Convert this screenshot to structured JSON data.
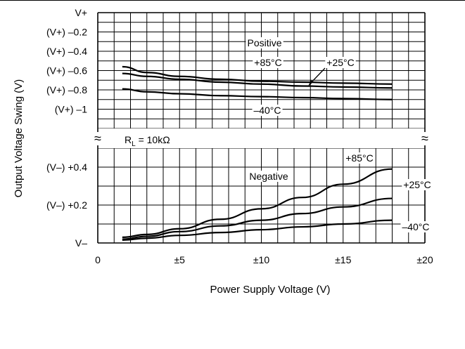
{
  "chart_data": {
    "type": "line",
    "xlabel": "Power Supply Voltage (V)",
    "ylabel": "Output Voltage Swing (V)",
    "x_ticks": [
      {
        "value": 0,
        "label": "0"
      },
      {
        "value": 5,
        "label": "±5"
      },
      {
        "value": 10,
        "label": "±10"
      },
      {
        "value": 15,
        "label": "±15"
      },
      {
        "value": 20,
        "label": "±20"
      }
    ],
    "xlim": [
      0,
      20
    ],
    "grid": true,
    "axis_break_symbol": "≈",
    "condition_label": {
      "main": "R",
      "sub": "L",
      "rest": " = 10kΩ"
    },
    "upper_panel": {
      "label": "Positive",
      "y_units": "volts relative to V+",
      "ylim": [
        -1.2,
        0
      ],
      "y_ticks": [
        {
          "value": 0,
          "label": "V+"
        },
        {
          "value": -0.2,
          "label": "(V+) –0.2"
        },
        {
          "value": -0.4,
          "label": "(V+) –0.4"
        },
        {
          "value": -0.6,
          "label": "(V+) –0.6"
        },
        {
          "value": -0.8,
          "label": "(V+) –0.8"
        },
        {
          "value": -1,
          "label": "(V+) –1"
        }
      ],
      "series": [
        {
          "name": "+85°C",
          "x": [
            1.5,
            3,
            5,
            7.5,
            10,
            12.5,
            15,
            18
          ],
          "y": [
            -0.63,
            -0.66,
            -0.69,
            -0.72,
            -0.74,
            -0.76,
            -0.77,
            -0.78
          ]
        },
        {
          "name": "+25°C",
          "x": [
            1.5,
            3,
            5,
            7.5,
            10,
            12.5,
            15,
            18
          ],
          "y": [
            -0.56,
            -0.62,
            -0.66,
            -0.69,
            -0.71,
            -0.72,
            -0.73,
            -0.74
          ]
        },
        {
          "name": "–40°C",
          "x": [
            1.5,
            3,
            5,
            7.5,
            10,
            12.5,
            15,
            18
          ],
          "y": [
            -0.79,
            -0.82,
            -0.84,
            -0.86,
            -0.87,
            -0.88,
            -0.89,
            -0.9
          ]
        }
      ]
    },
    "lower_panel": {
      "label": "Negative",
      "y_units": "volts relative to V–",
      "ylim": [
        0,
        0.5
      ],
      "y_ticks": [
        {
          "value": 0,
          "label": "V–"
        },
        {
          "value": 0.2,
          "label": "(V–) +0.2"
        },
        {
          "value": 0.4,
          "label": "(V–) +0.4"
        }
      ],
      "series": [
        {
          "name": "+85°C",
          "x": [
            1.5,
            3,
            5,
            7.5,
            10,
            12.5,
            15,
            18
          ],
          "y": [
            0.03,
            0.045,
            0.075,
            0.125,
            0.18,
            0.24,
            0.31,
            0.39
          ]
        },
        {
          "name": "+25°C",
          "x": [
            1.5,
            3,
            5,
            7.5,
            10,
            12.5,
            15,
            18
          ],
          "y": [
            0.02,
            0.035,
            0.06,
            0.09,
            0.12,
            0.155,
            0.19,
            0.235
          ]
        },
        {
          "name": "–40°C",
          "x": [
            1.5,
            3,
            5,
            7.5,
            10,
            12.5,
            15,
            18
          ],
          "y": [
            0.015,
            0.025,
            0.04,
            0.055,
            0.07,
            0.085,
            0.1,
            0.12
          ]
        }
      ]
    }
  }
}
